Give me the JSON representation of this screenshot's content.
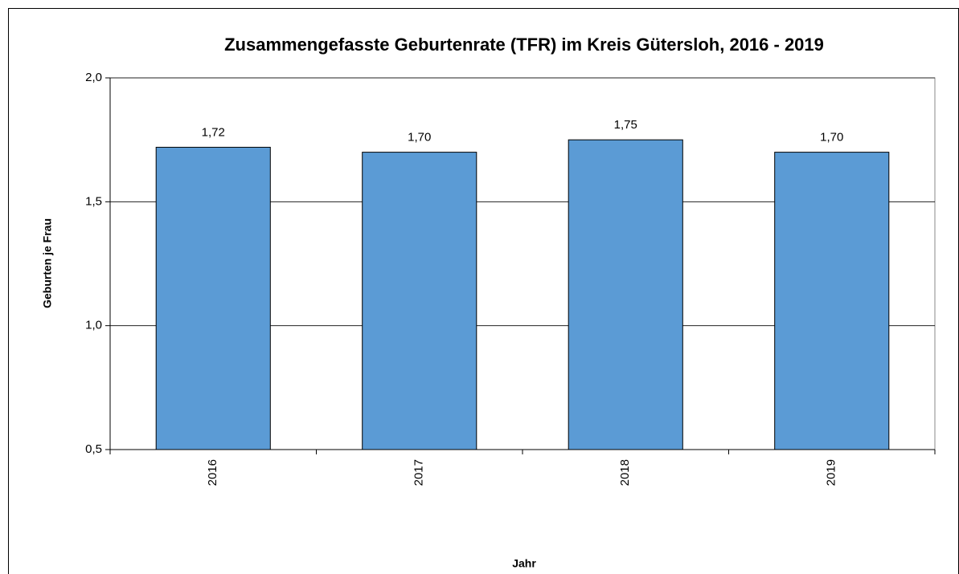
{
  "chart_data": {
    "type": "bar",
    "title": "Zusammengefasste Geburtenrate (TFR) im Kreis Gütersloh, 2016 - 2019",
    "y_label": "Geburten je Frau",
    "x_label": "Jahr",
    "categories": [
      "2016",
      "2017",
      "2018",
      "2019"
    ],
    "values": [
      1.72,
      1.7,
      1.75,
      1.7
    ],
    "value_labels": [
      "1,72",
      "1,70",
      "1,75",
      "1,70"
    ],
    "color": "#5b9bd5",
    "ylim": [
      0.5,
      2.0
    ],
    "yticks": [
      {
        "value": 0.5,
        "label": "0,5"
      },
      {
        "value": 1.0,
        "label": "1,0"
      },
      {
        "value": 1.5,
        "label": "1,5"
      },
      {
        "value": 2.0,
        "label": "2,0"
      }
    ],
    "grid": true
  }
}
